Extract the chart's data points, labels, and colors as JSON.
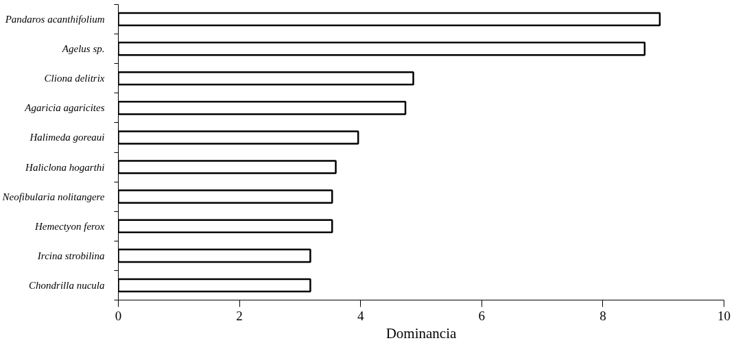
{
  "chart_data": {
    "type": "bar",
    "orientation": "horizontal",
    "xlabel": "Dominancia",
    "categories": [
      "Pandaros acanthifolium",
      "Agelus sp.",
      "Cliona delitrix",
      "Agaricia agaricites",
      "Halimeda goreaui",
      "Haliclona hogarthi",
      "Neofibularia nolitangere",
      "Hemectyon ferox",
      "Ircina strobilina",
      "Chondrilla nucula"
    ],
    "values": [
      8.94,
      8.69,
      4.87,
      4.74,
      3.96,
      3.59,
      3.53,
      3.53,
      3.17,
      3.17
    ],
    "color": "#ffffff",
    "xlim": [
      0,
      10
    ],
    "xticks": [
      0,
      2,
      4,
      6,
      8,
      10
    ],
    "grid": false
  }
}
